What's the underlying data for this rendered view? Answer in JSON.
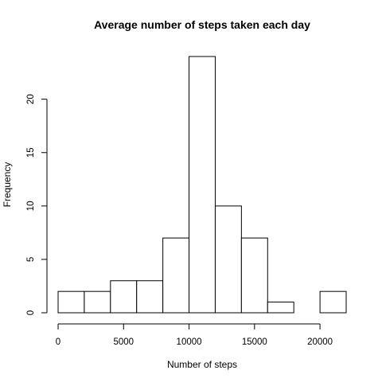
{
  "chart_data": {
    "type": "bar",
    "subtype": "histogram",
    "title": "Average number of steps taken each day",
    "xlabel": "Number of steps",
    "ylabel": "Frequency",
    "bins": [
      {
        "start": 0,
        "end": 2000,
        "count": 2
      },
      {
        "start": 2000,
        "end": 4000,
        "count": 2
      },
      {
        "start": 4000,
        "end": 6000,
        "count": 3
      },
      {
        "start": 6000,
        "end": 8000,
        "count": 3
      },
      {
        "start": 8000,
        "end": 10000,
        "count": 7
      },
      {
        "start": 10000,
        "end": 12000,
        "count": 24
      },
      {
        "start": 12000,
        "end": 14000,
        "count": 10
      },
      {
        "start": 14000,
        "end": 16000,
        "count": 7
      },
      {
        "start": 16000,
        "end": 18000,
        "count": 1
      },
      {
        "start": 18000,
        "end": 20000,
        "count": 0
      },
      {
        "start": 20000,
        "end": 22000,
        "count": 2
      }
    ],
    "xlim": [
      0,
      22000
    ],
    "ylim": [
      0,
      24
    ],
    "x_ticks": [
      0,
      5000,
      10000,
      15000,
      20000
    ],
    "y_ticks": [
      0,
      5,
      10,
      15,
      20
    ],
    "bar_fill": "#ffffff",
    "bar_stroke": "#000000",
    "grid": false,
    "legend": "none"
  }
}
